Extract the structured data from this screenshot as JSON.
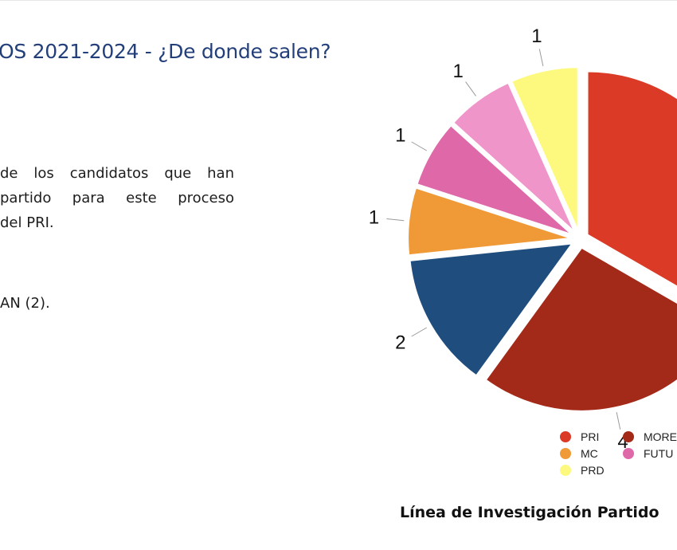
{
  "slide": {
    "title": "OS 2021-2024 - ¿De donde salen?",
    "body_lines": [
      "de los candidatos que han",
      "partido para este proceso",
      "del PRI."
    ],
    "note": "AN (2).",
    "source": "Línea de Investigación Partido"
  },
  "chart_data": {
    "type": "pie",
    "title": "",
    "slices": [
      {
        "label": "PRI",
        "value": 5,
        "color": "#db3a26"
      },
      {
        "label": "MORE",
        "value": 4,
        "color": "#a32a18"
      },
      {
        "label": "",
        "value": 2,
        "color": "#1f4d7d"
      },
      {
        "label": "MC",
        "value": 1,
        "color": "#f09a37"
      },
      {
        "label": "FUTU",
        "value": 1,
        "color": "#df68a9"
      },
      {
        "label": "",
        "value": 1,
        "color": "#f095c9"
      },
      {
        "label": "PRD",
        "value": 1,
        "color": "#fcf97e"
      }
    ],
    "data_labels": [
      "",
      "4",
      "2",
      "1",
      "1",
      "1",
      "1"
    ],
    "legend_position": "bottom"
  },
  "legend": [
    {
      "label": "PRI",
      "color": "#db3a26"
    },
    {
      "label": "MORE",
      "color": "#a32a18"
    },
    {
      "label": "MC",
      "color": "#f09a37"
    },
    {
      "label": "FUTU",
      "color": "#df68a9"
    },
    {
      "label": "PRD",
      "color": "#fcf97e"
    }
  ]
}
